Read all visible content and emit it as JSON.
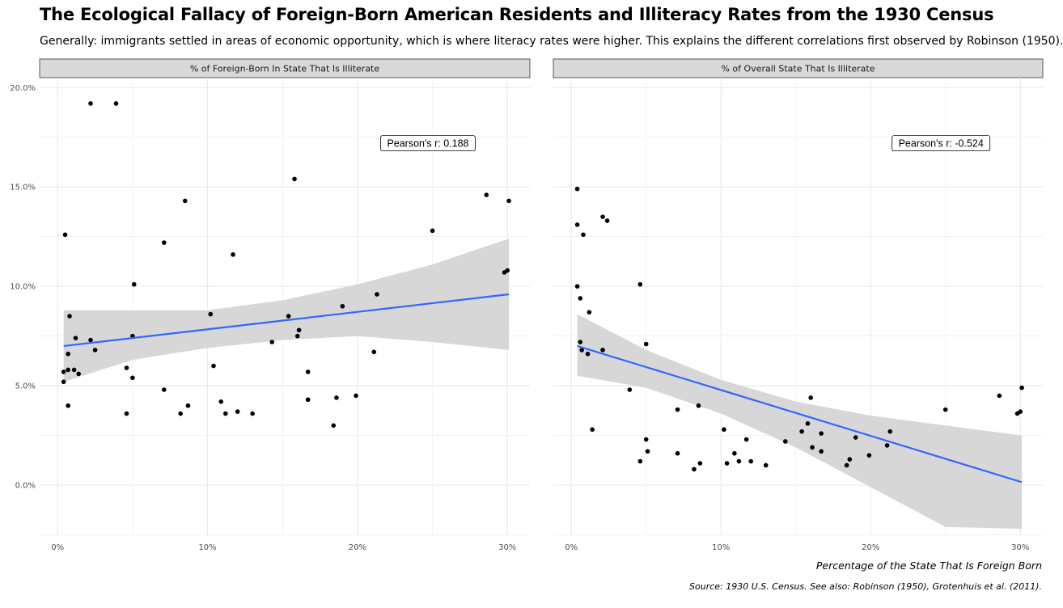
{
  "title": "The Ecological Fallacy of Foreign-Born American Residents and Illiteracy Rates from the 1930 Census",
  "subtitle": "Generally: immigrants settled in areas of economic opportunity, which is where literacy rates were higher. This explains the different correlations first observed by Robinson (1950).",
  "x_axis_label": "Percentage of the State That Is Foreign Born",
  "caption": "Source: 1930 U.S. Census. See also: Robinson (1950), Grotenhuis et al. (2011).",
  "colors": {
    "point": "#000000",
    "trend": "#3366FF",
    "ribbon": "#d3d3d3",
    "strip": "#d9d9d9",
    "grid": "#ebebeb"
  },
  "chart_data": [
    {
      "type": "scatter",
      "panel": "% of Foreign-Born In State That Is Illiterate",
      "xlim": [
        -0.012,
        0.315
      ],
      "ylim": [
        -0.026,
        0.205
      ],
      "x_ticks": [
        0,
        0.1,
        0.2,
        0.3
      ],
      "x_tick_labels": [
        "0%",
        "10%",
        "20%",
        "30%"
      ],
      "y_ticks": [
        0,
        0.05,
        0.1,
        0.15,
        0.2
      ],
      "y_tick_labels": [
        "0.0%",
        "5.0%",
        "10.0%",
        "15.0%",
        "20.0%"
      ],
      "annotation": "Pearson's r: 0.188",
      "trend": {
        "x": [
          0.004,
          0.301
        ],
        "y": [
          0.07,
          0.096
        ]
      },
      "ribbon": {
        "x": [
          0.004,
          0.05,
          0.1,
          0.15,
          0.2,
          0.25,
          0.301
        ],
        "upper": [
          0.088,
          0.088,
          0.088,
          0.093,
          0.101,
          0.111,
          0.124
        ],
        "lower": [
          0.052,
          0.063,
          0.069,
          0.073,
          0.075,
          0.072,
          0.068
        ]
      },
      "points": [
        {
          "x": 0.022,
          "y": 0.192
        },
        {
          "x": 0.039,
          "y": 0.192
        },
        {
          "x": 0.005,
          "y": 0.126
        },
        {
          "x": 0.085,
          "y": 0.143
        },
        {
          "x": 0.071,
          "y": 0.122
        },
        {
          "x": 0.117,
          "y": 0.116
        },
        {
          "x": 0.158,
          "y": 0.154
        },
        {
          "x": 0.25,
          "y": 0.128
        },
        {
          "x": 0.286,
          "y": 0.146
        },
        {
          "x": 0.301,
          "y": 0.143
        },
        {
          "x": 0.298,
          "y": 0.107
        },
        {
          "x": 0.3,
          "y": 0.108
        },
        {
          "x": 0.051,
          "y": 0.101
        },
        {
          "x": 0.008,
          "y": 0.085
        },
        {
          "x": 0.102,
          "y": 0.086
        },
        {
          "x": 0.154,
          "y": 0.085
        },
        {
          "x": 0.213,
          "y": 0.096
        },
        {
          "x": 0.19,
          "y": 0.09
        },
        {
          "x": 0.012,
          "y": 0.074
        },
        {
          "x": 0.022,
          "y": 0.073
        },
        {
          "x": 0.025,
          "y": 0.068
        },
        {
          "x": 0.05,
          "y": 0.075
        },
        {
          "x": 0.007,
          "y": 0.066
        },
        {
          "x": 0.004,
          "y": 0.057
        },
        {
          "x": 0.007,
          "y": 0.058
        },
        {
          "x": 0.011,
          "y": 0.058
        },
        {
          "x": 0.014,
          "y": 0.056
        },
        {
          "x": 0.004,
          "y": 0.052
        },
        {
          "x": 0.046,
          "y": 0.059
        },
        {
          "x": 0.05,
          "y": 0.054
        },
        {
          "x": 0.104,
          "y": 0.06
        },
        {
          "x": 0.143,
          "y": 0.072
        },
        {
          "x": 0.161,
          "y": 0.078
        },
        {
          "x": 0.16,
          "y": 0.075
        },
        {
          "x": 0.211,
          "y": 0.067
        },
        {
          "x": 0.167,
          "y": 0.057
        },
        {
          "x": 0.007,
          "y": 0.04
        },
        {
          "x": 0.046,
          "y": 0.036
        },
        {
          "x": 0.071,
          "y": 0.048
        },
        {
          "x": 0.082,
          "y": 0.036
        },
        {
          "x": 0.087,
          "y": 0.04
        },
        {
          "x": 0.109,
          "y": 0.042
        },
        {
          "x": 0.112,
          "y": 0.036
        },
        {
          "x": 0.12,
          "y": 0.037
        },
        {
          "x": 0.13,
          "y": 0.036
        },
        {
          "x": 0.167,
          "y": 0.043
        },
        {
          "x": 0.186,
          "y": 0.044
        },
        {
          "x": 0.199,
          "y": 0.045
        },
        {
          "x": 0.184,
          "y": 0.03
        }
      ]
    },
    {
      "type": "scatter",
      "panel": "% of Overall State That Is Illiterate",
      "xlim": [
        -0.012,
        0.315
      ],
      "ylim": [
        -0.026,
        0.205
      ],
      "x_ticks": [
        0,
        0.1,
        0.2,
        0.3
      ],
      "x_tick_labels": [
        "0%",
        "10%",
        "20%",
        "30%"
      ],
      "annotation": "Pearson's r: -0.524",
      "trend": {
        "x": [
          0.004,
          0.301
        ],
        "y": [
          0.07,
          0.0015
        ]
      },
      "ribbon": {
        "x": [
          0.004,
          0.05,
          0.1,
          0.15,
          0.2,
          0.25,
          0.301
        ],
        "upper": [
          0.086,
          0.068,
          0.053,
          0.042,
          0.035,
          0.03,
          0.025
        ],
        "lower": [
          0.055,
          0.049,
          0.036,
          0.019,
          -0.001,
          -0.021,
          -0.022
        ]
      },
      "points": [
        {
          "x": 0.004,
          "y": 0.149
        },
        {
          "x": 0.004,
          "y": 0.131
        },
        {
          "x": 0.008,
          "y": 0.126
        },
        {
          "x": 0.021,
          "y": 0.135
        },
        {
          "x": 0.024,
          "y": 0.133
        },
        {
          "x": 0.046,
          "y": 0.101
        },
        {
          "x": 0.004,
          "y": 0.1
        },
        {
          "x": 0.006,
          "y": 0.094
        },
        {
          "x": 0.012,
          "y": 0.087
        },
        {
          "x": 0.006,
          "y": 0.072
        },
        {
          "x": 0.007,
          "y": 0.068
        },
        {
          "x": 0.011,
          "y": 0.066
        },
        {
          "x": 0.021,
          "y": 0.068
        },
        {
          "x": 0.05,
          "y": 0.071
        },
        {
          "x": 0.039,
          "y": 0.048
        },
        {
          "x": 0.071,
          "y": 0.038
        },
        {
          "x": 0.085,
          "y": 0.04
        },
        {
          "x": 0.014,
          "y": 0.028
        },
        {
          "x": 0.05,
          "y": 0.023
        },
        {
          "x": 0.051,
          "y": 0.017
        },
        {
          "x": 0.046,
          "y": 0.012
        },
        {
          "x": 0.071,
          "y": 0.016
        },
        {
          "x": 0.082,
          "y": 0.008
        },
        {
          "x": 0.086,
          "y": 0.011
        },
        {
          "x": 0.102,
          "y": 0.028
        },
        {
          "x": 0.104,
          "y": 0.011
        },
        {
          "x": 0.109,
          "y": 0.016
        },
        {
          "x": 0.112,
          "y": 0.012
        },
        {
          "x": 0.117,
          "y": 0.023
        },
        {
          "x": 0.12,
          "y": 0.012
        },
        {
          "x": 0.13,
          "y": 0.01
        },
        {
          "x": 0.143,
          "y": 0.022
        },
        {
          "x": 0.154,
          "y": 0.027
        },
        {
          "x": 0.158,
          "y": 0.031
        },
        {
          "x": 0.16,
          "y": 0.044
        },
        {
          "x": 0.161,
          "y": 0.019
        },
        {
          "x": 0.167,
          "y": 0.026
        },
        {
          "x": 0.167,
          "y": 0.017
        },
        {
          "x": 0.184,
          "y": 0.01
        },
        {
          "x": 0.186,
          "y": 0.013
        },
        {
          "x": 0.19,
          "y": 0.024
        },
        {
          "x": 0.199,
          "y": 0.015
        },
        {
          "x": 0.211,
          "y": 0.02
        },
        {
          "x": 0.213,
          "y": 0.027
        },
        {
          "x": 0.25,
          "y": 0.038
        },
        {
          "x": 0.286,
          "y": 0.045
        },
        {
          "x": 0.298,
          "y": 0.036
        },
        {
          "x": 0.3,
          "y": 0.037
        },
        {
          "x": 0.301,
          "y": 0.049
        }
      ]
    }
  ]
}
